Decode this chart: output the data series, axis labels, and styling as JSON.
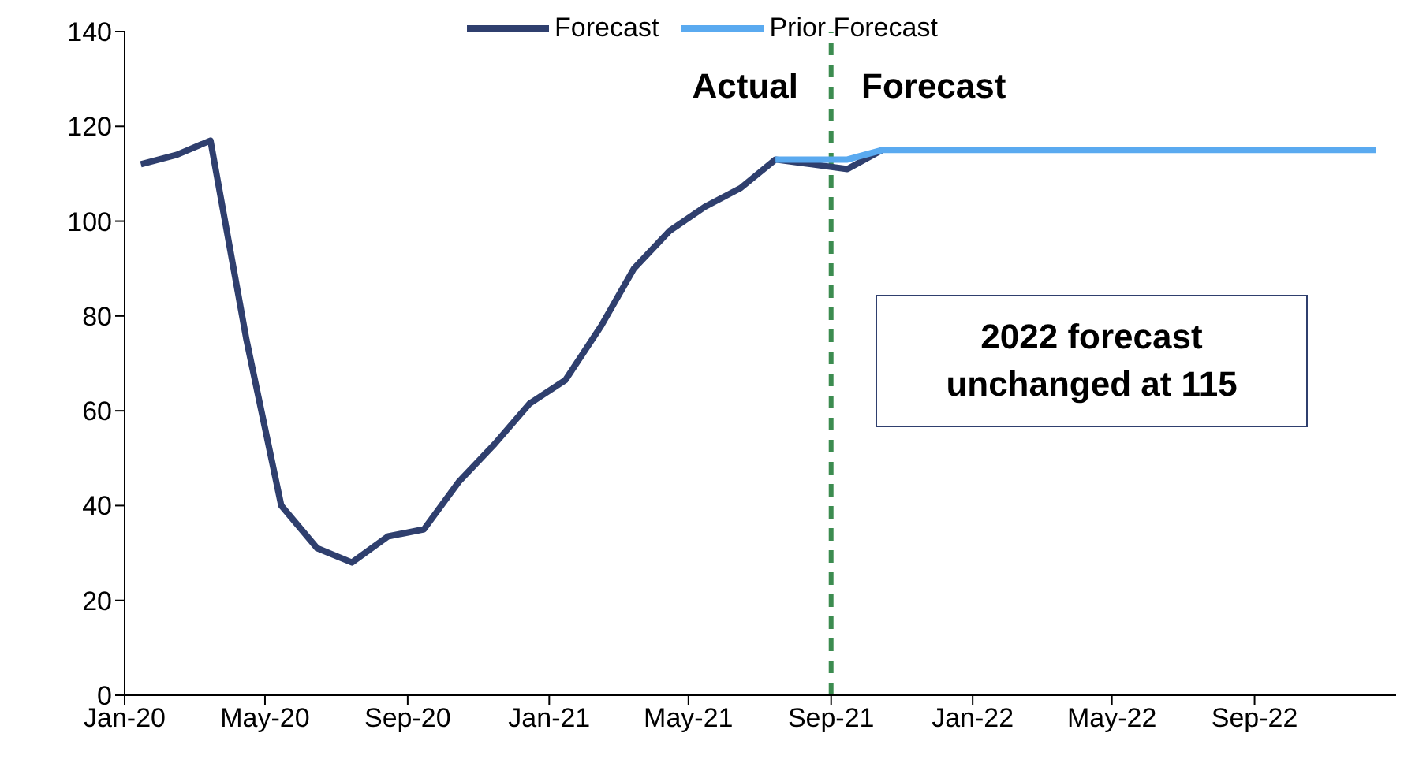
{
  "chart_data": {
    "type": "line",
    "x": [
      "2020-01-15",
      "2020-02-15",
      "2020-03-15",
      "2020-04-15",
      "2020-05-15",
      "2020-06-15",
      "2020-07-15",
      "2020-08-15",
      "2020-09-15",
      "2020-10-15",
      "2020-11-15",
      "2020-12-15",
      "2021-01-15",
      "2021-02-15",
      "2021-03-15",
      "2021-04-15",
      "2021-05-15",
      "2021-06-15",
      "2021-07-15",
      "2021-08-15",
      "2021-09-15",
      "2021-10-15",
      "2021-11-15",
      "2021-12-15",
      "2022-01-15",
      "2022-02-15",
      "2022-03-15",
      "2022-04-15",
      "2022-05-15",
      "2022-06-15",
      "2022-07-15",
      "2022-08-15",
      "2022-09-15",
      "2022-10-15",
      "2022-11-15",
      "2022-12-15"
    ],
    "series": [
      {
        "name": "Forecast",
        "color": "#2f3f6e",
        "values": [
          112,
          114,
          117,
          75,
          40,
          31,
          28,
          33.5,
          35,
          45,
          53,
          61.5,
          66.5,
          78,
          90,
          98,
          103,
          107,
          113,
          112,
          111,
          115,
          null,
          null,
          null,
          null,
          null,
          null,
          null,
          null,
          null,
          null,
          null,
          null,
          null,
          null
        ]
      },
      {
        "name": "Prior Forecast",
        "color": "#5aaaf0",
        "values": [
          null,
          null,
          null,
          null,
          null,
          null,
          null,
          null,
          null,
          null,
          null,
          null,
          null,
          null,
          null,
          null,
          null,
          null,
          113,
          113,
          113,
          115,
          115,
          115,
          115,
          115,
          115,
          115,
          115,
          115,
          115,
          115,
          115,
          115,
          115,
          115
        ]
      }
    ],
    "xlim": [
      "2020-01-01",
      "2023-01-01"
    ],
    "xticks": [
      {
        "value": "2020-01-01",
        "label": "Jan-20"
      },
      {
        "value": "2020-05-01",
        "label": "May-20"
      },
      {
        "value": "2020-09-01",
        "label": "Sep-20"
      },
      {
        "value": "2021-01-01",
        "label": "Jan-21"
      },
      {
        "value": "2021-05-01",
        "label": "May-21"
      },
      {
        "value": "2021-09-01",
        "label": "Sep-21"
      },
      {
        "value": "2022-01-01",
        "label": "Jan-22"
      },
      {
        "value": "2022-05-01",
        "label": "May-22"
      },
      {
        "value": "2022-09-01",
        "label": "Sep-22"
      }
    ],
    "ylim": [
      0,
      140
    ],
    "yticks": [
      0,
      20,
      40,
      60,
      80,
      100,
      120,
      140
    ],
    "ref_lines": [
      {
        "axis": "x",
        "value": "2021-09-01",
        "color": "#3c8c50",
        "line_style": "dashed"
      }
    ],
    "annotations": [
      "Actual",
      "Forecast",
      "2022 forecast\nunchanged at 115"
    ],
    "legend": "top",
    "grid": false,
    "marker": "none",
    "line_style": "solid"
  }
}
